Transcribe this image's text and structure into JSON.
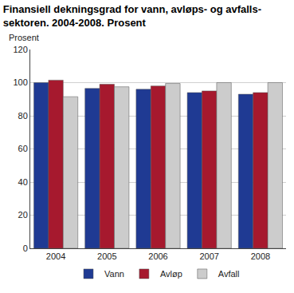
{
  "chart_data": {
    "type": "bar",
    "title": "Finansiell dekningsgrad for vann, avløps- og avfalls-\nsektoren. 2004-2008. Prosent",
    "ylabel": "Prosent",
    "categories": [
      "2004",
      "2005",
      "2006",
      "2007",
      "2008"
    ],
    "series": [
      {
        "name": "Vann",
        "color": "#1f3a93",
        "values": [
          100,
          96.5,
          96,
          94,
          93
        ]
      },
      {
        "name": "Avløp",
        "color": "#a6192e",
        "values": [
          101.5,
          99,
          98,
          95,
          94
        ]
      },
      {
        "name": "Avfall",
        "color": "#cccccc",
        "values": [
          91.5,
          97.5,
          99.5,
          100,
          100
        ]
      }
    ],
    "ylim": [
      0,
      120
    ],
    "yticks": [
      0,
      20,
      40,
      60,
      80,
      100,
      120
    ],
    "grid": true,
    "legend": "bottom"
  }
}
